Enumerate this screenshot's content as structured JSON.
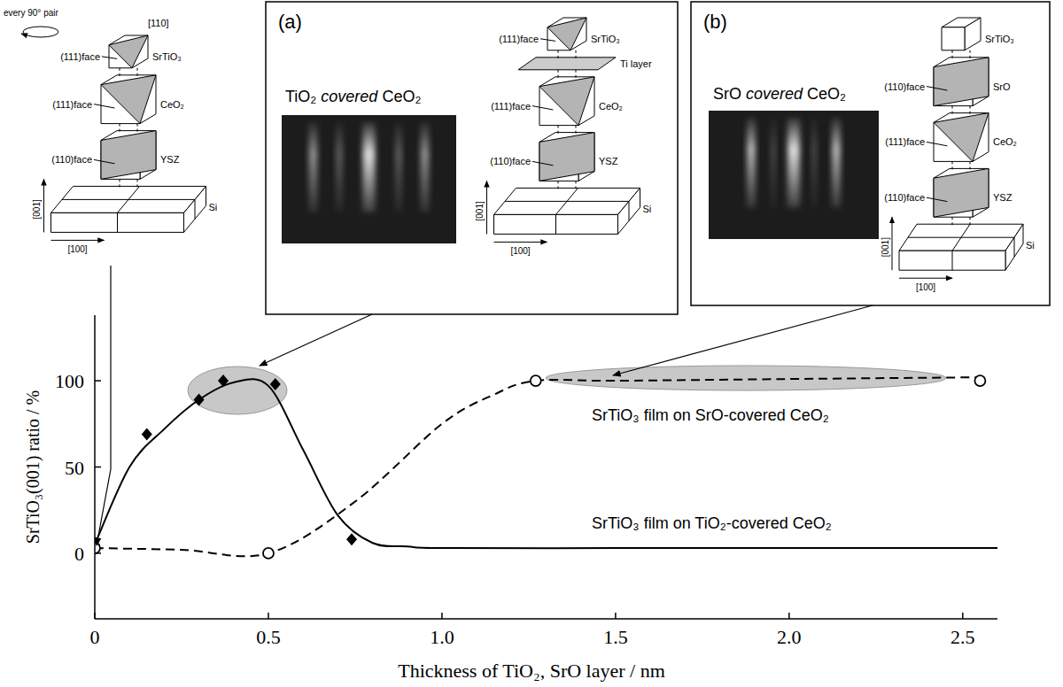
{
  "chart_data": {
    "type": "line",
    "x_label": "Thickness of TiO₂, SrO layer / nm",
    "y_label": "SrTiO₃(001) ratio / %",
    "xlim": [
      0,
      2.6
    ],
    "ylim": [
      -38,
      138
    ],
    "xticks": [
      0,
      0.5,
      {
        "value": 1,
        "label": "1.0"
      },
      1.5,
      {
        "value": 2,
        "label": "2.0"
      },
      2.5
    ],
    "yticks": [
      0,
      50,
      100
    ],
    "grid": false,
    "series": [
      {
        "name": "SrTiO₃ film on TiO₂-covered CeO₂",
        "color": "#000000",
        "marker": "diamond",
        "line_style": "solid",
        "x": [
          0,
          0.15,
          0.3,
          0.37,
          0.52,
          0.74
        ],
        "values": [
          5,
          69,
          89,
          100,
          98,
          8
        ],
        "fit": {
          "x": [
            0,
            0.1,
            0.2,
            0.3,
            0.4,
            0.5,
            0.6,
            0.7,
            0.8,
            0.9,
            1.0,
            1.5,
            2.0,
            2.6
          ],
          "values": [
            5,
            50,
            72,
            89,
            99,
            97,
            60,
            22,
            6,
            4,
            3,
            3,
            3,
            3
          ]
        }
      },
      {
        "name": "SrTiO₃ film on SrO-covered CeO₂",
        "color": "#000000",
        "marker": "open-circle",
        "line_style": "dashed",
        "x": [
          0,
          0.5,
          1.27,
          2.55
        ],
        "values": [
          3,
          0,
          100,
          100
        ],
        "fit": {
          "x": [
            0,
            0.25,
            0.5,
            0.75,
            1.0,
            1.15,
            1.27,
            1.5,
            2.0,
            2.55
          ],
          "values": [
            3,
            2,
            0,
            30,
            75,
            92,
            100,
            100,
            101,
            102
          ]
        }
      }
    ]
  },
  "insets": {
    "overview": {
      "rotation_note": "every 90° pair",
      "top_axis": "[110]",
      "layers": [
        {
          "name": "SrTiO₃",
          "face": "(111)face"
        },
        {
          "name": "CeO₂",
          "face": "(111)face"
        },
        {
          "name": "YSZ",
          "face": "(110)face"
        },
        {
          "name": "Si"
        }
      ],
      "vertical_axis": "[001]",
      "horizontal_axis": "[100]"
    },
    "a": {
      "letter": "(a)",
      "caption": {
        "pre": "TiO₂ ",
        "em": "covered",
        "post": " CeO₂"
      },
      "layers": [
        {
          "name": "SrTiO₃",
          "face": "(111)face"
        },
        {
          "name": "Ti layer"
        },
        {
          "name": "CeO₂",
          "face": "(111)face"
        },
        {
          "name": "YSZ",
          "face": "(110)face"
        },
        {
          "name": "Si"
        }
      ],
      "vertical_axis": "[001]",
      "horizontal_axis": "[100]"
    },
    "b": {
      "letter": "(b)",
      "caption": {
        "pre": "SrO ",
        "em": "covered",
        "post": " CeO₂"
      },
      "layers": [
        {
          "name": "SrTiO₃"
        },
        {
          "name": "SrO",
          "face": "(110)face"
        },
        {
          "name": "CeO₂",
          "face": "(111)face"
        },
        {
          "name": "YSZ",
          "face": "(110)face"
        },
        {
          "name": "Si"
        }
      ],
      "vertical_axis": "[001]",
      "horizontal_axis": "[100]"
    }
  }
}
